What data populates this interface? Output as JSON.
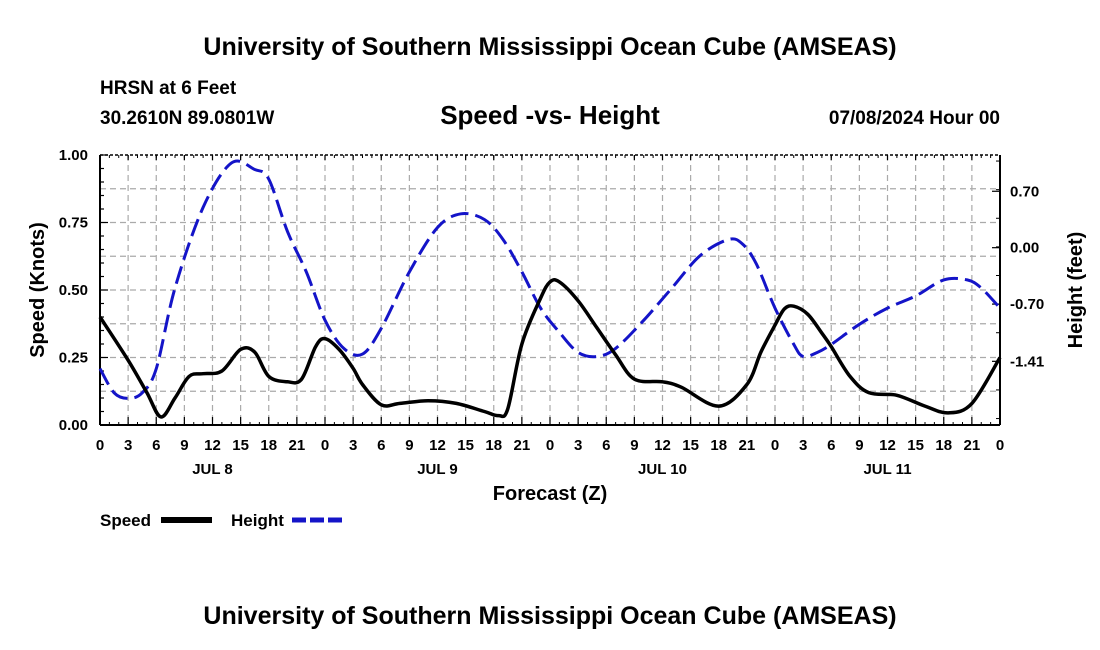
{
  "header": {
    "top_title": "University of Southern Mississippi Ocean Cube (AMSEAS)",
    "station": "HRSN at 6 Feet",
    "coords": "30.2610N  89.0801W",
    "subtitle": "Speed -vs- Height",
    "date": "07/08/2024 Hour 00",
    "bottom_title": "University of Southern Mississippi Ocean Cube (AMSEAS)"
  },
  "legend": {
    "speed_label": "Speed",
    "height_label": "Height"
  },
  "colors": {
    "speed": "#000000",
    "height": "#1414c8",
    "grid": "#aaaaaa"
  },
  "chart_data": {
    "type": "line",
    "title": "Speed -vs- Height",
    "xlabel": "Forecast (Z)",
    "ylabel_left": "Speed (Knots)",
    "ylabel_right": "Height (feet)",
    "x_range_hours": [
      0,
      96
    ],
    "x_tick_labels": [
      "0",
      "3",
      "6",
      "9",
      "12",
      "15",
      "18",
      "21",
      "0",
      "3",
      "6",
      "9",
      "12",
      "15",
      "18",
      "21",
      "0",
      "3",
      "6",
      "9",
      "12",
      "15",
      "18",
      "21",
      "0",
      "3",
      "6",
      "9",
      "12",
      "15",
      "18",
      "21",
      "0"
    ],
    "day_labels": [
      {
        "label": "JUL 8",
        "hour": 12
      },
      {
        "label": "JUL 9",
        "hour": 36
      },
      {
        "label": "JUL 10",
        "hour": 60
      },
      {
        "label": "JUL 11",
        "hour": 84
      }
    ],
    "ylim_left": [
      0,
      1.0
    ],
    "y_ticks_left": [
      "0.00",
      "0.25",
      "0.50",
      "0.75",
      "1.00"
    ],
    "y_tick_values_left": [
      0,
      0.25,
      0.5,
      0.75,
      1.0
    ],
    "ylim_right": [
      -2.2,
      1.15
    ],
    "y_ticks_right": [
      "-1.41",
      "-0.70",
      "0.00",
      "0.70"
    ],
    "y_tick_values_right": [
      -1.41,
      -0.7,
      0.0,
      0.7
    ],
    "grid": true,
    "series": [
      {
        "name": "Speed",
        "axis": "left",
        "style": "solid",
        "x": [
          0,
          3,
          5,
          6.5,
          8,
          9.5,
          11,
          13,
          15,
          16.5,
          18,
          20,
          21.5,
          23,
          24,
          25.5,
          27,
          28,
          30,
          32,
          35,
          38,
          41,
          42.5,
          43.5,
          45,
          47,
          48,
          49,
          51,
          53,
          55,
          57,
          60,
          62,
          66,
          69,
          70.5,
          72,
          73,
          74,
          75.5,
          77,
          78,
          80,
          82,
          85,
          88,
          90.5,
          93,
          96
        ],
        "values": [
          0.4,
          0.24,
          0.12,
          0.03,
          0.1,
          0.18,
          0.19,
          0.2,
          0.28,
          0.27,
          0.18,
          0.16,
          0.17,
          0.29,
          0.32,
          0.28,
          0.21,
          0.15,
          0.075,
          0.08,
          0.09,
          0.08,
          0.05,
          0.035,
          0.06,
          0.3,
          0.47,
          0.53,
          0.53,
          0.46,
          0.36,
          0.26,
          0.17,
          0.16,
          0.14,
          0.07,
          0.15,
          0.27,
          0.37,
          0.43,
          0.44,
          0.41,
          0.34,
          0.29,
          0.18,
          0.12,
          0.11,
          0.07,
          0.045,
          0.08,
          0.25
        ]
      },
      {
        "name": "Height",
        "axis": "right",
        "style": "dashed",
        "x": [
          0,
          1.5,
          3,
          4.5,
          6,
          8,
          11,
          14,
          16.5,
          18,
          20,
          22,
          24,
          26,
          28,
          30,
          33,
          36,
          38.5,
          41,
          43,
          45,
          47,
          49,
          51,
          53,
          55,
          58,
          61,
          64,
          67,
          68.5,
          70,
          72,
          74,
          75,
          76.5,
          78,
          81,
          84,
          87,
          90,
          92.5,
          94,
          96
        ],
        "values": [
          -1.5,
          -1.8,
          -1.87,
          -1.8,
          -1.5,
          -0.5,
          0.5,
          1.05,
          0.97,
          0.85,
          0.2,
          -0.3,
          -0.9,
          -1.25,
          -1.32,
          -1.0,
          -0.3,
          0.25,
          0.42,
          0.35,
          0.1,
          -0.3,
          -0.75,
          -1.05,
          -1.3,
          -1.35,
          -1.25,
          -0.9,
          -0.5,
          -0.1,
          0.1,
          0.05,
          -0.2,
          -0.75,
          -1.2,
          -1.35,
          -1.3,
          -1.2,
          -0.95,
          -0.75,
          -0.6,
          -0.4,
          -0.4,
          -0.5,
          -0.75
        ]
      }
    ]
  }
}
